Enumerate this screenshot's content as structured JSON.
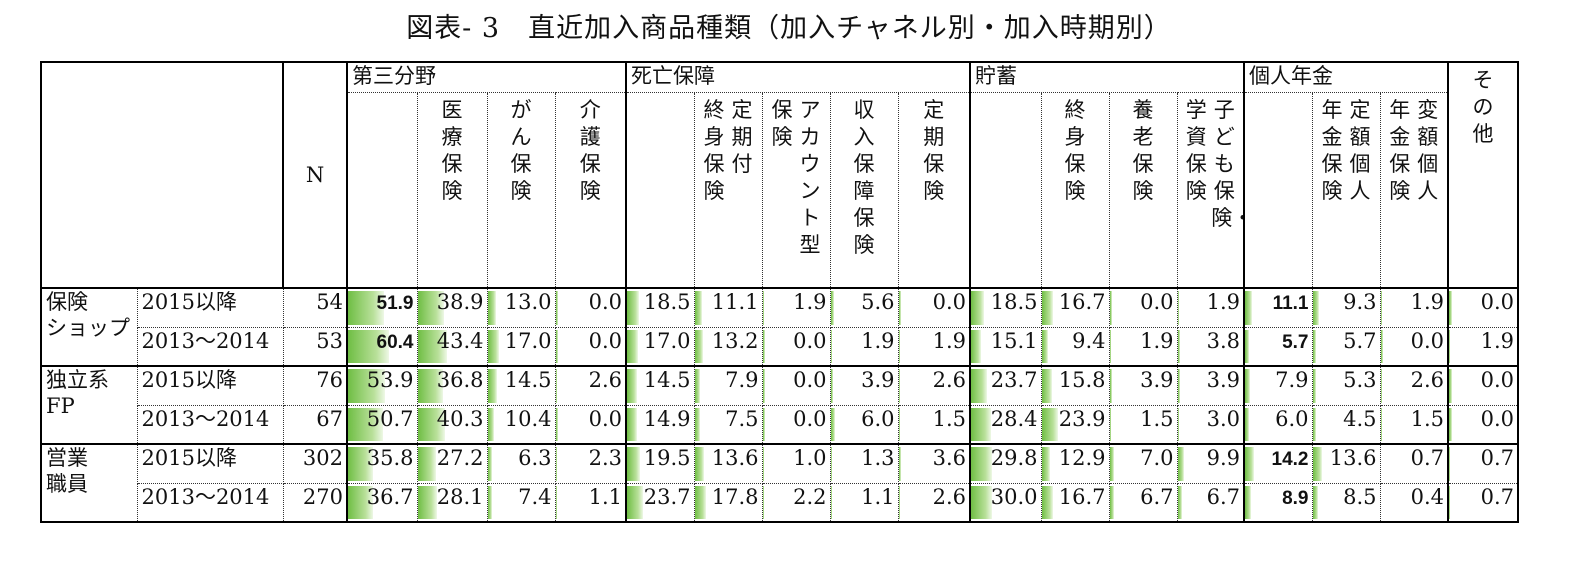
{
  "title": "図表- 3　直近加入商品種類（加入チャネル別・加入時期別）",
  "header": {
    "n_label": "N",
    "groups": [
      "第三分野",
      "死亡保障",
      "貯蓄",
      "個人年金",
      "その他"
    ],
    "sub_medical": "医療保険",
    "sub_cancer": "がん保険",
    "sub_care": "介護保険",
    "sub_whole": [
      "終身保険",
      "定期付"
    ],
    "sub_account": [
      "保険",
      "アカウント型"
    ],
    "sub_income": "収入保障保険",
    "sub_term": "定期保険",
    "sub_savings_whole": "終身保険",
    "sub_endow": "養老保険",
    "sub_child": [
      "学資保険",
      "子ども保険・"
    ],
    "sub_fixed_annuity": [
      "年金保険",
      "定額個人"
    ],
    "sub_var_annuity": [
      "年金保険",
      "変額個人"
    ]
  },
  "chart_data": {
    "type": "table",
    "title": "図表- 3　直近加入商品種類（加入チャネル別・加入時期別）",
    "columns": [
      "N",
      "第三分野",
      "医療保険",
      "がん保険",
      "介護保険",
      "死亡保障",
      "終身保険（定期付）",
      "アカウント型保険",
      "収入保障保険",
      "定期保険",
      "貯蓄",
      "終身保険",
      "養老保険",
      "学資保険・子ども保険",
      "個人年金",
      "定額個人年金保険",
      "変額個人年金保険",
      "その他"
    ],
    "channels": [
      {
        "name": [
          "保険",
          "ショップ"
        ],
        "rows": [
          {
            "period": "2015以降",
            "n": "54",
            "values": [
              "51.9",
              "38.9",
              "13.0",
              "0.0",
              "18.5",
              "11.1",
              "1.9",
              "5.6",
              "0.0",
              "18.5",
              "16.7",
              "0.0",
              "1.9",
              "11.1",
              "9.3",
              "1.9",
              "0.0"
            ]
          },
          {
            "period": "2013～2014",
            "n": "53",
            "values": [
              "60.4",
              "43.4",
              "17.0",
              "0.0",
              "17.0",
              "13.2",
              "0.0",
              "1.9",
              "1.9",
              "15.1",
              "9.4",
              "1.9",
              "3.8",
              "5.7",
              "5.7",
              "0.0",
              "1.9"
            ]
          }
        ]
      },
      {
        "name": [
          "独立系",
          "FP"
        ],
        "rows": [
          {
            "period": "2015以降",
            "n": "76",
            "values": [
              "53.9",
              "36.8",
              "14.5",
              "2.6",
              "14.5",
              "7.9",
              "0.0",
              "3.9",
              "2.6",
              "23.7",
              "15.8",
              "3.9",
              "3.9",
              "7.9",
              "5.3",
              "2.6",
              "0.0"
            ]
          },
          {
            "period": "2013～2014",
            "n": "67",
            "values": [
              "50.7",
              "40.3",
              "10.4",
              "0.0",
              "14.9",
              "7.5",
              "0.0",
              "6.0",
              "1.5",
              "28.4",
              "23.9",
              "1.5",
              "3.0",
              "6.0",
              "4.5",
              "1.5",
              "0.0"
            ]
          }
        ]
      },
      {
        "name": [
          "営業",
          "職員"
        ],
        "rows": [
          {
            "period": "2015以降",
            "n": "302",
            "values": [
              "35.8",
              "27.2",
              "6.3",
              "2.3",
              "19.5",
              "13.6",
              "1.0",
              "1.3",
              "3.6",
              "29.8",
              "12.9",
              "7.0",
              "9.9",
              "14.2",
              "13.6",
              "0.7",
              "0.7"
            ]
          },
          {
            "period": "2013～2014",
            "n": "270",
            "values": [
              "36.7",
              "28.1",
              "7.4",
              "1.1",
              "23.7",
              "17.8",
              "2.2",
              "1.1",
              "2.6",
              "30.0",
              "16.7",
              "6.7",
              "6.7",
              "8.9",
              "8.5",
              "0.4",
              "0.7"
            ]
          }
        ]
      }
    ],
    "bold_values": {
      "0-0-0": true,
      "0-1-0": true,
      "0-0-13": true,
      "0-1-13": true,
      "2-0-13": true,
      "2-1-13": true
    },
    "bar_scale_max": 100,
    "bar_color": "#6fbe44"
  }
}
